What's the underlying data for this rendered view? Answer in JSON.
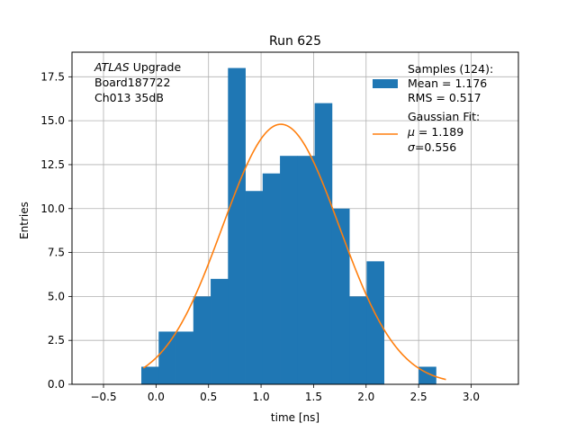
{
  "chart_data": {
    "type": "bar",
    "title": "Run 625",
    "xlabel": "time [ns]",
    "ylabel": "Entries",
    "xlim": [
      -0.8,
      3.45
    ],
    "ylim": [
      0,
      18.9
    ],
    "xticks": [
      -0.5,
      0.0,
      0.5,
      1.0,
      1.5,
      2.0,
      2.5,
      3.0
    ],
    "xtick_labels": [
      "−0.5",
      "0.0",
      "0.5",
      "1.0",
      "1.5",
      "2.0",
      "2.5",
      "3.0"
    ],
    "yticks": [
      0,
      2.5,
      5,
      7.5,
      10,
      12.5,
      15,
      17.5
    ],
    "ytick_labels": [
      "0.0",
      "2.5",
      "5.0",
      "7.5",
      "10.0",
      "12.5",
      "15.0",
      "17.5"
    ],
    "grid": true,
    "histogram": {
      "bin_edges": [
        -0.14,
        0.025,
        0.19,
        0.355,
        0.52,
        0.685,
        0.85,
        1.015,
        1.18,
        1.345,
        1.51,
        1.675,
        1.84,
        2.005,
        2.17,
        2.335,
        2.5,
        2.665,
        2.83
      ],
      "counts": [
        1,
        3,
        3,
        5,
        6,
        18,
        11,
        12,
        13,
        13,
        16,
        10,
        5,
        7,
        0,
        0,
        1,
        0
      ],
      "color": "#1f77b4"
    },
    "fit": {
      "mu": 1.189,
      "sigma": 0.556,
      "amplitude": 14.8,
      "x_range": [
        -0.12,
        2.76
      ],
      "color": "#ff7f0e"
    },
    "annotation_lines": [
      {
        "italic": "ATLAS",
        "rest": " Upgrade"
      },
      {
        "italic": "",
        "rest": " Board187722"
      },
      {
        "italic": "",
        "rest": " Ch013 35dB"
      }
    ],
    "legend": {
      "position": "top-right",
      "hist_lines": [
        "Samples (124):",
        " Mean = 1.176",
        " RMS = 0.517"
      ],
      "fit_lines": [
        "Gaussian Fit:",
        " μ = 1.189",
        " σ=0.556"
      ]
    }
  }
}
